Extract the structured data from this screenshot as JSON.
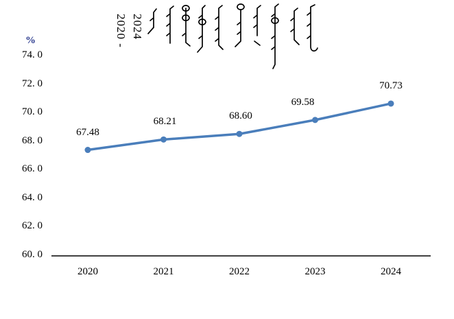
{
  "title": {
    "script_label": "mongolian-traditional-vertical-script-title",
    "year_lines": [
      "2020 -",
      "2024"
    ],
    "year_range": "2020 - 2024"
  },
  "chart_data": {
    "type": "line",
    "title": "2020 - 2024 (vertical Mongolian script heading)",
    "unit_label": "%",
    "categories": [
      "2020",
      "2021",
      "2022",
      "2023",
      "2024"
    ],
    "values": [
      67.48,
      68.21,
      68.6,
      69.58,
      70.73
    ],
    "value_labels": [
      "67.48",
      "68.21",
      "68.60",
      "69.58",
      "70.73"
    ],
    "ylim": [
      60.0,
      74.0
    ],
    "y_ticks": [
      74,
      72,
      70,
      68,
      66,
      64,
      62,
      60
    ],
    "y_tick_labels": [
      "74. 0",
      "72. 0",
      "70. 0",
      "68. 0",
      "66. 0",
      "64. 0",
      "62. 0",
      "60. 0"
    ],
    "grid": false,
    "legend": "none",
    "line_color": "#4a7ebb",
    "marker_color": "#4a7ebb",
    "axis_color": "#404040",
    "unit_label_color": "#2b3a8e",
    "label_color": "#000000"
  }
}
